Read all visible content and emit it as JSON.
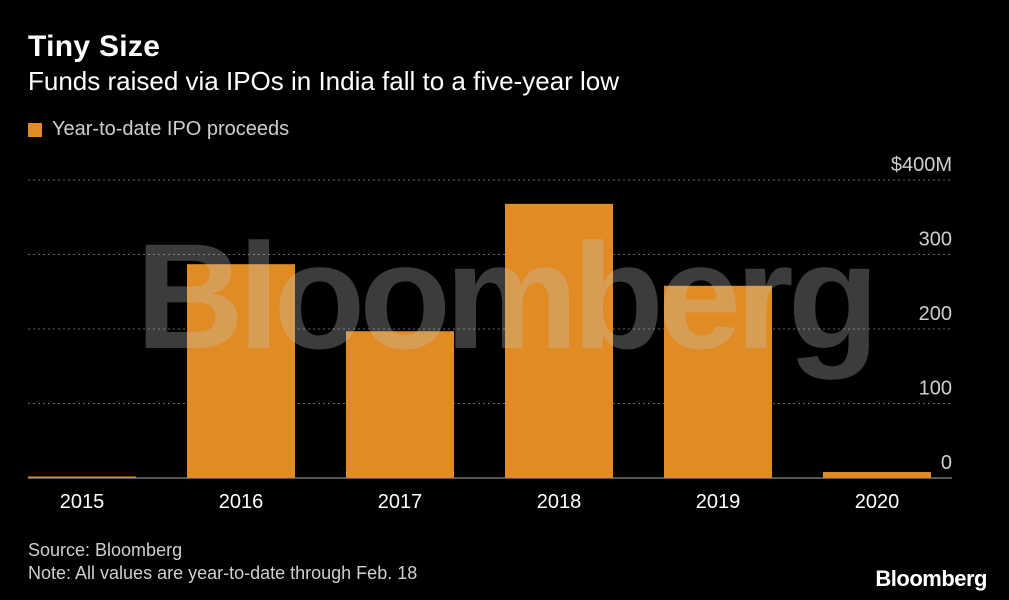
{
  "header": {
    "title": "Tiny Size",
    "subtitle": "Funds raised via IPOs in India fall to a five-year low"
  },
  "footer": {
    "source": "Source: Bloomberg",
    "note": "Note: All values are year-to-date through Feb. 18",
    "brand": "Bloomberg"
  },
  "watermark": "Bloomberg",
  "colors": {
    "bar": "#E08B24",
    "background": "#000000",
    "grid": "#666666"
  },
  "chart_data": {
    "type": "bar",
    "title": "Tiny Size",
    "subtitle": "Funds raised via IPOs in India fall to a five-year low",
    "categories": [
      "2015",
      "2016",
      "2017",
      "2018",
      "2019",
      "2020"
    ],
    "series": [
      {
        "name": "Year-to-date IPO proceeds",
        "values": [
          2,
          287,
          197,
          368,
          258,
          8
        ]
      }
    ],
    "ylim": [
      0,
      400
    ],
    "yticks": [
      0,
      100,
      200,
      300,
      400
    ],
    "ytick_labels": [
      "0",
      "100",
      "200",
      "300",
      "$400M"
    ],
    "xlabel": "",
    "ylabel": "",
    "grid": true,
    "legend": "top-left"
  }
}
